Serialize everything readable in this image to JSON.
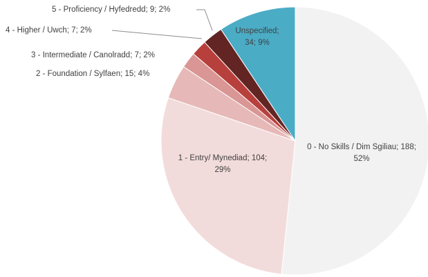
{
  "chart_data": {
    "type": "pie",
    "values": [
      188,
      104,
      15,
      7,
      7,
      9,
      34
    ],
    "value_labels": [
      [
        "0 - No Skills / Dim Sgiliau; 188;",
        "52%"
      ],
      [
        "1 - Entry/ Mynediad; 104;",
        "29%"
      ],
      [
        "2 - Foundation / Sylfaen; 15; 4%"
      ],
      [
        "3 - Intermediate / Canolradd; 7; 2%"
      ],
      [
        "4 - Higher / Uwch; 7; 2%"
      ],
      [
        "5 - Proficiency / Hyfedredd; 9; 2%"
      ],
      [
        "Unspecified;",
        "34; 9%"
      ]
    ],
    "colors": [
      "#f2f2f2",
      "#f2dcdb",
      "#e6b9b8",
      "#d99694",
      "#b7403d",
      "#632523",
      "#4bacc6"
    ]
  }
}
